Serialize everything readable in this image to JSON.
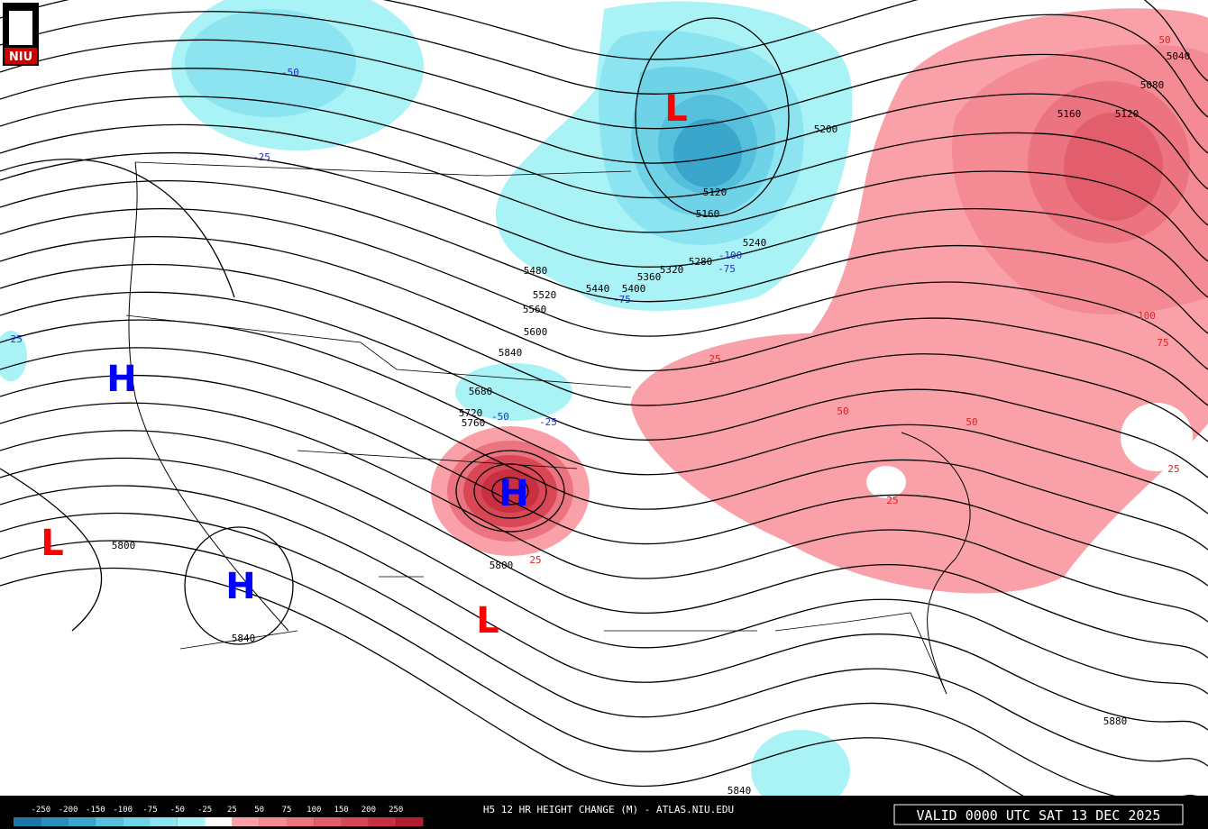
{
  "logo": "NIU",
  "footer": {
    "title": "H5 12 HR HEIGHT CHANGE (M) - ATLAS.NIU.EDU",
    "valid": "VALID 0000 UTC SAT 13 DEC 2025"
  },
  "legend": {
    "labels": [
      "-250",
      "-200",
      "-150",
      "-100",
      "-75",
      "-50",
      "-25",
      "25",
      "50",
      "75",
      "100",
      "150",
      "200",
      "250"
    ],
    "colors": [
      "#1b75a8",
      "#2a8fbd",
      "#3aa6cc",
      "#55bfdc",
      "#6fd3e8",
      "#8be4f0",
      "#a9f3f7",
      "#ffffff",
      "#f9a0a8",
      "#f48a94",
      "#ec7480",
      "#e35e6c",
      "#d84756",
      "#c83042",
      "#b01d2e"
    ]
  },
  "centers": [
    {
      "label": "H",
      "color": "#0000ff"
    },
    {
      "label": "L",
      "color": "#ff0000"
    },
    {
      "label": "H",
      "color": "#0000ff"
    },
    {
      "label": "L",
      "color": "#ff0000"
    },
    {
      "label": "L",
      "color": "#ff0000"
    },
    {
      "label": "H",
      "color": "#0000ff"
    }
  ],
  "height_labels": [
    "5800",
    "5840",
    "5800",
    "5840",
    "5680",
    "5720",
    "5760",
    "5600",
    "5560",
    "5520",
    "5480",
    "5440",
    "5400",
    "5360",
    "5320",
    "5280",
    "5240",
    "5160",
    "5120",
    "5200",
    "5160",
    "5120",
    "5080",
    "5040",
    "5880",
    "5840"
  ],
  "change_labels": [
    "-50",
    "-25",
    "-25",
    "-100",
    "-75",
    "-25",
    "-50",
    "-75",
    "25",
    "50",
    "50",
    "25",
    "75",
    "100",
    "50",
    "25",
    "25"
  ]
}
